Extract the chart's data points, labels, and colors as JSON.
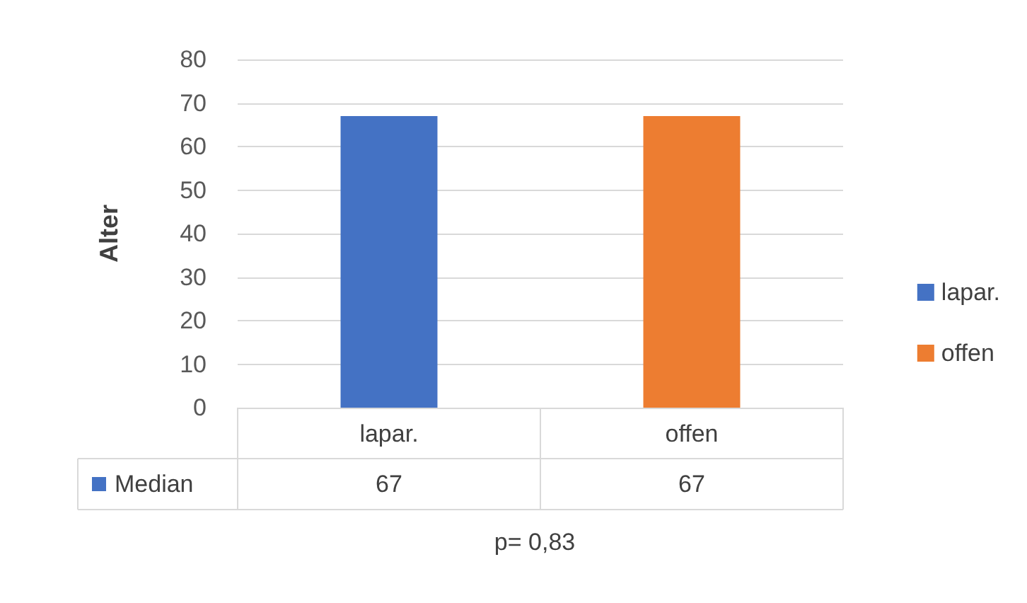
{
  "chart_data": {
    "type": "bar",
    "ylabel": "Alter",
    "categories": [
      "lapar.",
      "offen"
    ],
    "series": [
      {
        "name": "lapar.",
        "color": "#4472c4",
        "values": [
          67,
          null
        ]
      },
      {
        "name": "offen",
        "color": "#ed7d31",
        "values": [
          null,
          67
        ]
      }
    ],
    "ylim": [
      0,
      80
    ],
    "yticks": [
      0,
      10,
      20,
      30,
      40,
      50,
      60,
      70,
      80
    ],
    "grid": "y",
    "legend": "right",
    "data_labels": true,
    "annotations": [
      "Median",
      "p= 0,83"
    ]
  }
}
